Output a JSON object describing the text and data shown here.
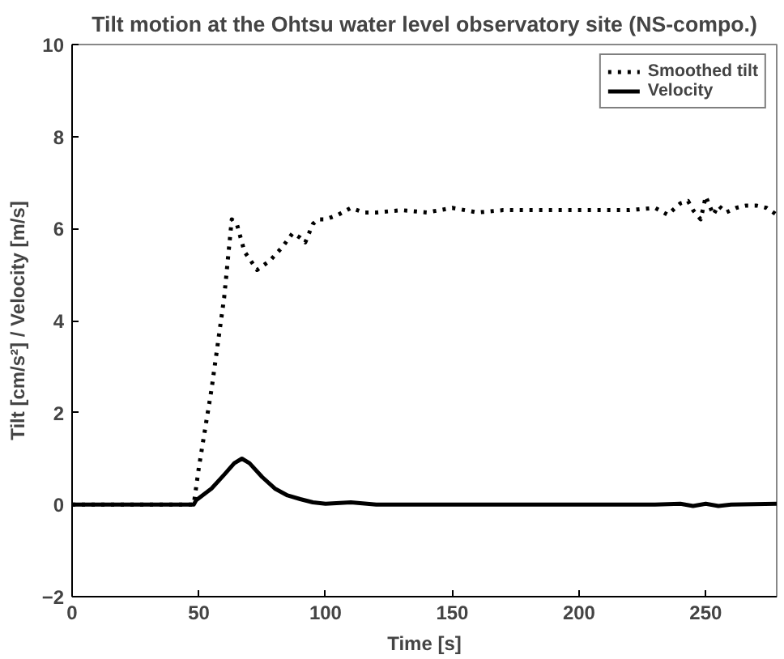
{
  "chart_data": {
    "type": "line",
    "title": "Tilt motion at the Ohtsu water level observatory site (NS-compo.)",
    "xlabel": "Time [s]",
    "ylabel": "Tilt [cm/s²] / Velocity [m/s]",
    "xlim": [
      0,
      278
    ],
    "ylim": [
      -2,
      10
    ],
    "xticks": [
      0,
      50,
      100,
      150,
      200,
      250
    ],
    "yticks": [
      -2,
      0,
      2,
      4,
      6,
      8,
      10
    ],
    "grid": false,
    "legend": "top right",
    "series": [
      {
        "name": "Smoothed tilt",
        "color": "#000000",
        "line_style": "dotted",
        "x": [
          0,
          48,
          50,
          55,
          60,
          63,
          65,
          68,
          73,
          78,
          83,
          87,
          90,
          92,
          95,
          97,
          100,
          105,
          110,
          115,
          120,
          130,
          140,
          150,
          160,
          170,
          180,
          190,
          200,
          210,
          220,
          230,
          235,
          240,
          243,
          245,
          248,
          250,
          253,
          255,
          258,
          262,
          266,
          270,
          274,
          278
        ],
        "values": [
          0,
          0,
          0.8,
          2.5,
          4.5,
          6.2,
          6.1,
          5.5,
          5.1,
          5.3,
          5.6,
          5.9,
          5.8,
          5.7,
          6.1,
          6.2,
          6.2,
          6.3,
          6.45,
          6.35,
          6.35,
          6.4,
          6.35,
          6.45,
          6.35,
          6.4,
          6.4,
          6.4,
          6.4,
          6.4,
          6.4,
          6.45,
          6.3,
          6.55,
          6.6,
          6.4,
          6.2,
          6.7,
          6.3,
          6.5,
          6.35,
          6.45,
          6.5,
          6.5,
          6.45,
          6.3
        ]
      },
      {
        "name": "Velocity",
        "color": "#000000",
        "line_style": "solid",
        "x": [
          0,
          48,
          49,
          55,
          60,
          64,
          67,
          70,
          75,
          80,
          85,
          90,
          95,
          100,
          110,
          120,
          130,
          150,
          200,
          230,
          240,
          245,
          250,
          255,
          260,
          278
        ],
        "values": [
          0,
          0,
          0.1,
          0.35,
          0.65,
          0.9,
          1.0,
          0.9,
          0.6,
          0.35,
          0.2,
          0.12,
          0.05,
          0.02,
          0.05,
          0.0,
          0.0,
          0.0,
          0.0,
          0.0,
          0.02,
          -0.03,
          0.02,
          -0.03,
          0.0,
          0.02
        ]
      }
    ]
  }
}
